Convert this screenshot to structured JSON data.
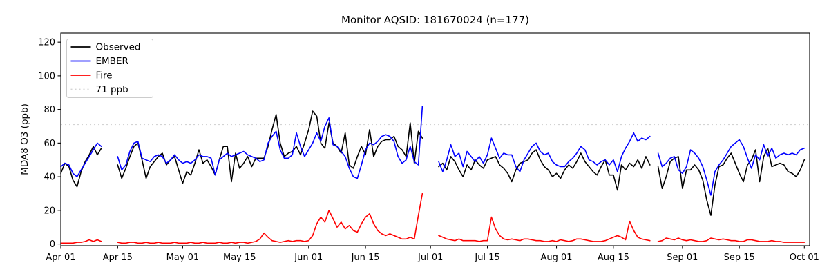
{
  "figure": {
    "title": "Monitor AQSID: 181670024 (n=177)",
    "background_color": "#ffffff"
  },
  "legend": {
    "position": "upper left",
    "items": [
      {
        "label": "Observed",
        "color": "#000000",
        "style": "solid"
      },
      {
        "label": "EMBER",
        "color": "#0000ff",
        "style": "solid"
      },
      {
        "label": "Fire",
        "color": "#ff0000",
        "style": "solid"
      },
      {
        "label": "71 ppb",
        "color": "#d3d3d3",
        "style": "dotted"
      }
    ]
  },
  "chart_data": {
    "type": "line",
    "title": "Monitor AQSID: 181670024 (n=177)",
    "xlabel": "",
    "ylabel": "MDA8 O3 (ppb)",
    "ylim": [
      -1,
      125.4
    ],
    "yticks": [
      0,
      20,
      40,
      60,
      80,
      100,
      120
    ],
    "xtick_labels": [
      "Apr 01",
      "Apr 15",
      "May 01",
      "May 15",
      "Jun 01",
      "Jun 15",
      "Jul 01",
      "Jul 15",
      "Aug 01",
      "Aug 15",
      "Sep 01",
      "Sep 15",
      "Oct 01"
    ],
    "xtick_day_index": [
      0,
      14,
      30,
      44,
      61,
      75,
      91,
      105,
      122,
      136,
      153,
      167,
      183
    ],
    "x_axis": {
      "start_label": "Apr 01",
      "end_label": "Oct 01",
      "step": "1 day",
      "n_points": 184
    },
    "n_days": 184,
    "n_valid_points": 177,
    "missing_day_indices": [
      11,
      12,
      13,
      90,
      91,
      92,
      146
    ],
    "grid": false,
    "legend_position": "upper left",
    "threshold": {
      "value": 71,
      "label": "71 ppb",
      "color": "#d3d3d3",
      "style": "dotted"
    },
    "series": [
      {
        "name": "Observed",
        "color": "#000000",
        "values": [
          42,
          48,
          46,
          38,
          34,
          43,
          49,
          53,
          58,
          53,
          57,
          null,
          null,
          null,
          47,
          39,
          45,
          52,
          58,
          60,
          50,
          39,
          46,
          49,
          52,
          54,
          47,
          50,
          52,
          44,
          36,
          43,
          41,
          48,
          56,
          48,
          50,
          46,
          41,
          50,
          58,
          58,
          37,
          54,
          45,
          48,
          52,
          46,
          51,
          51,
          51,
          58,
          68,
          77,
          60,
          52,
          54,
          55,
          58,
          53,
          60,
          68,
          79,
          76,
          60,
          57,
          72,
          60,
          58,
          54,
          66,
          47,
          45,
          52,
          58,
          53,
          68,
          52,
          58,
          61,
          62,
          62,
          64,
          58,
          56,
          52,
          72,
          48,
          67,
          63,
          null,
          null,
          null,
          46,
          48,
          44,
          52,
          49,
          44,
          40,
          47,
          44,
          50,
          47,
          45,
          50,
          51,
          52,
          47,
          45,
          42,
          37,
          44,
          48,
          49,
          50,
          54,
          56,
          50,
          46,
          44,
          40,
          42,
          39,
          44,
          47,
          45,
          49,
          54,
          49,
          46,
          43,
          41,
          46,
          50,
          41,
          41,
          32,
          47,
          44,
          48,
          46,
          50,
          45,
          52,
          47,
          null,
          46,
          33,
          40,
          49,
          51,
          52,
          33,
          44,
          44,
          47,
          44,
          38,
          26,
          17,
          35,
          46,
          47,
          51,
          54,
          48,
          42,
          37,
          47,
          50,
          56,
          37,
          52,
          57,
          46,
          47,
          48,
          47,
          43,
          42,
          40,
          44,
          50
        ]
      },
      {
        "name": "EMBER",
        "color": "#0000ff",
        "values": [
          46,
          48,
          47,
          42,
          40,
          44,
          48,
          52,
          56,
          60,
          58,
          null,
          null,
          null,
          52,
          44,
          47,
          55,
          60,
          61,
          51,
          50,
          49,
          52,
          53,
          52,
          48,
          50,
          53,
          50,
          48,
          49,
          48,
          50,
          53,
          52,
          52,
          51,
          41,
          50,
          52,
          54,
          52,
          53,
          54,
          55,
          53,
          52,
          51,
          49,
          50,
          60,
          64,
          67,
          56,
          51,
          51,
          53,
          66,
          58,
          52,
          56,
          60,
          66,
          61,
          70,
          75,
          59,
          58,
          55,
          52,
          45,
          40,
          39,
          47,
          56,
          60,
          59,
          61,
          64,
          65,
          64,
          61,
          52,
          48,
          50,
          58,
          49,
          47,
          82,
          null,
          null,
          null,
          49,
          43,
          50,
          59,
          52,
          54,
          46,
          55,
          52,
          49,
          52,
          48,
          53,
          63,
          57,
          51,
          54,
          53,
          53,
          46,
          43,
          50,
          54,
          58,
          60,
          55,
          53,
          54,
          49,
          47,
          46,
          46,
          49,
          51,
          54,
          58,
          56,
          50,
          49,
          47,
          49,
          50,
          47,
          50,
          43,
          52,
          57,
          61,
          66,
          61,
          63,
          62,
          64,
          null,
          54,
          46,
          48,
          51,
          52,
          44,
          42,
          46,
          56,
          54,
          51,
          46,
          38,
          29,
          43,
          47,
          50,
          54,
          58,
          60,
          62,
          58,
          51,
          45,
          53,
          50,
          59,
          52,
          57,
          51,
          53,
          54,
          53,
          54,
          53,
          56,
          57
        ]
      },
      {
        "name": "Fire",
        "color": "#ff0000",
        "values": [
          0.5,
          0.5,
          0.5,
          0.5,
          1,
          1,
          1.5,
          2.5,
          1.5,
          2.5,
          1.5,
          null,
          null,
          null,
          1,
          0.5,
          0.5,
          1,
          1,
          0.5,
          0.5,
          1,
          0.5,
          0.5,
          1,
          0.5,
          0.5,
          0.5,
          1,
          0.5,
          0.5,
          0.5,
          1,
          0.5,
          0.5,
          1,
          0.5,
          0.5,
          0.5,
          1,
          0.5,
          0.5,
          1,
          0.5,
          1,
          1,
          0.5,
          1,
          1.5,
          3,
          6.5,
          4,
          2,
          1.5,
          1,
          1.5,
          2,
          1.5,
          2,
          2,
          1.5,
          2,
          5,
          12,
          16,
          13,
          20,
          15,
          10,
          13,
          9,
          11,
          8,
          7,
          12,
          16,
          18,
          12,
          8,
          6,
          5,
          6,
          5,
          4,
          3,
          3,
          4,
          3,
          17,
          30,
          null,
          null,
          null,
          5,
          4,
          3,
          2.5,
          2,
          3,
          2,
          2,
          2,
          2,
          1.5,
          2,
          2,
          16,
          9,
          5,
          3,
          2.5,
          3,
          2.5,
          2,
          3,
          3,
          2.5,
          2,
          2,
          1.5,
          1.5,
          2,
          1.5,
          2.5,
          2,
          1.5,
          2,
          3,
          3,
          2.5,
          2,
          1.5,
          1.5,
          1.5,
          2,
          3,
          4,
          5,
          4,
          2.5,
          13.5,
          8,
          4,
          3,
          2.5,
          2,
          null,
          1.5,
          2,
          3.5,
          3,
          2.5,
          3.5,
          2.5,
          2,
          2.5,
          2,
          1.5,
          1.5,
          2,
          3.5,
          3,
          2.5,
          3,
          2.5,
          2,
          2,
          1.5,
          1.5,
          2.5,
          2.5,
          2,
          1.5,
          1.5,
          1.5,
          2,
          1.5,
          1.5,
          1,
          1,
          1,
          1,
          1,
          1
        ]
      }
    ]
  },
  "style": {
    "plot_border_color": "#000000",
    "tick_color": "#000000",
    "threshold_color": "#d3d3d3",
    "line_width": 1.6
  }
}
